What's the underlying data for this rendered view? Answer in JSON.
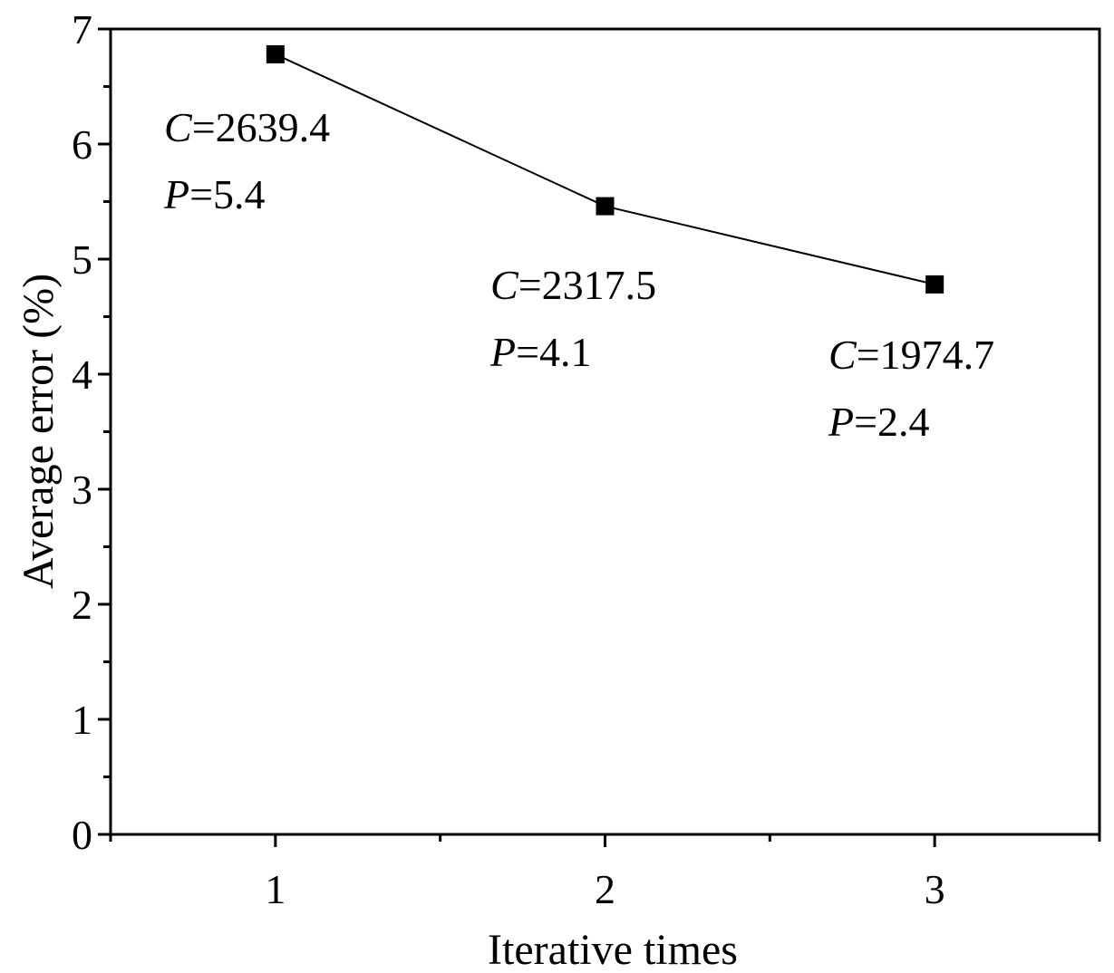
{
  "chart_data": {
    "type": "line",
    "title": "",
    "xlabel": "Iterative times",
    "ylabel": "Average error (%)",
    "xlim": [
      0.5,
      3.5
    ],
    "ylim": [
      0,
      7
    ],
    "x_ticks": [
      1,
      2,
      3
    ],
    "y_ticks": [
      0,
      1,
      2,
      3,
      4,
      5,
      6,
      7
    ],
    "grid": false,
    "legend": "none",
    "marker": "square",
    "line_color": "#000000",
    "series": [
      {
        "x": [
          1,
          2,
          3
        ],
        "y": [
          6.78,
          5.46,
          4.78
        ]
      }
    ],
    "annotations": [
      {
        "x": 1,
        "lines": [
          {
            "var": "C",
            "text": "=2639.4"
          },
          {
            "var": "P",
            "text": "=5.4"
          }
        ]
      },
      {
        "x": 2,
        "lines": [
          {
            "var": "C",
            "text": "=2317.5"
          },
          {
            "var": "P",
            "text": "=4.1"
          }
        ]
      },
      {
        "x": 3,
        "lines": [
          {
            "var": "C",
            "text": "=1974.7"
          },
          {
            "var": "P",
            "text": "=2.4"
          }
        ]
      }
    ]
  }
}
